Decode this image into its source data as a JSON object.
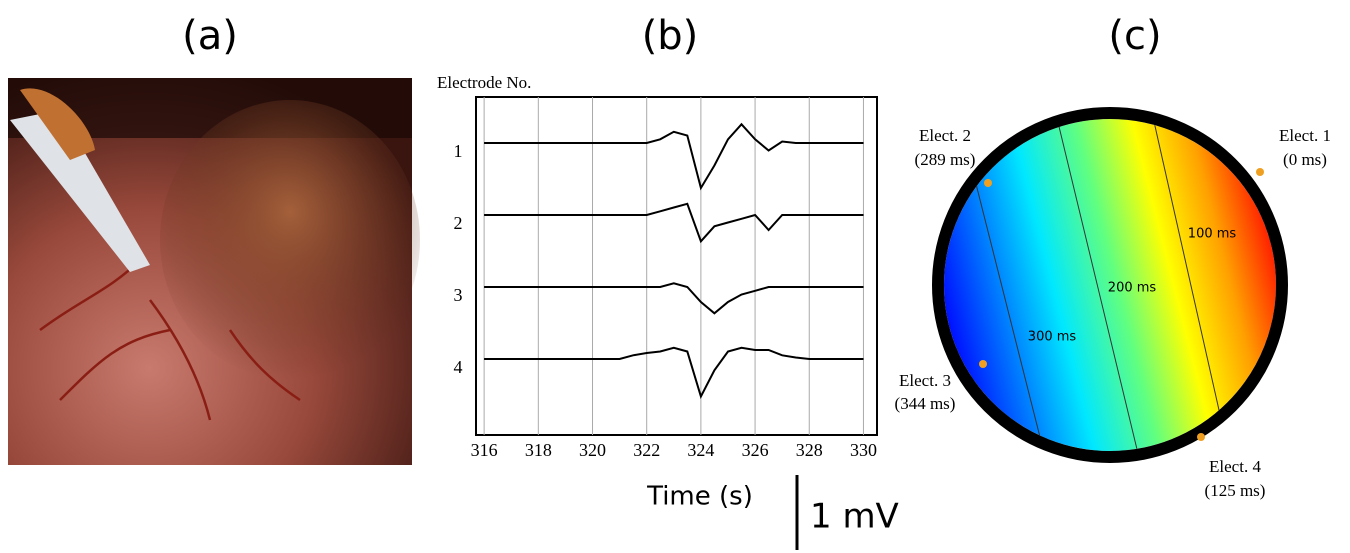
{
  "panel_labels": [
    "(a)",
    "(b)",
    "(c)"
  ],
  "chart_data": {
    "type": "line",
    "y_title": "Electrode No.",
    "x_title": "Time (s)",
    "scale_bar": 1,
    "scale_bar_label": "1 mV",
    "color": "#000000",
    "grid": true,
    "xlim": [
      315.7,
      330.5
    ],
    "xticks": [
      316,
      318,
      320,
      322,
      324,
      326,
      328,
      330
    ],
    "x": [
      316,
      316.5,
      317,
      317.5,
      318,
      318.5,
      319,
      319.5,
      320,
      320.5,
      321,
      321.5,
      322,
      322.5,
      323,
      323.5,
      324,
      324.5,
      325,
      325.5,
      326,
      326.5,
      327,
      327.5,
      328,
      328.5,
      329,
      329.5,
      330
    ],
    "series": [
      {
        "name": "1",
        "values": [
          0,
          0,
          0,
          0,
          0,
          0,
          0,
          0,
          0,
          0,
          0,
          0,
          0,
          0.05,
          0.15,
          0.1,
          -0.6,
          -0.3,
          0.05,
          0.25,
          0.05,
          -0.1,
          0.02,
          0,
          0,
          0,
          0,
          0,
          0
        ]
      },
      {
        "name": "2",
        "values": [
          0,
          0,
          0,
          0,
          0,
          0,
          0,
          0,
          0,
          0,
          0,
          0,
          0,
          0.05,
          0.1,
          0.15,
          -0.35,
          -0.15,
          -0.1,
          -0.05,
          0,
          -0.2,
          0,
          0,
          0,
          0,
          0,
          0,
          0
        ]
      },
      {
        "name": "3",
        "values": [
          0,
          0,
          0,
          0,
          0,
          0,
          0,
          0,
          0,
          0,
          0,
          0,
          0,
          0,
          0.05,
          0,
          -0.2,
          -0.35,
          -0.2,
          -0.1,
          -0.05,
          0,
          0,
          0,
          0,
          0,
          0,
          0,
          0
        ]
      },
      {
        "name": "4",
        "values": [
          0,
          0,
          0,
          0,
          0,
          0,
          0,
          0,
          0,
          0,
          0,
          0.05,
          0.08,
          0.1,
          0.15,
          0.1,
          -0.5,
          -0.15,
          0.1,
          0.15,
          0.12,
          0.12,
          0.05,
          0.02,
          0,
          0,
          0,
          0,
          0
        ]
      }
    ]
  },
  "map": {
    "electrodes": [
      {
        "label": "Elect. 1",
        "time": "(0 ms)"
      },
      {
        "label": "Elect. 2",
        "time": "(289 ms)"
      },
      {
        "label": "Elect. 3",
        "time": "(344 ms)"
      },
      {
        "label": "Elect. 4",
        "time": "(125 ms)"
      }
    ],
    "isochrones": [
      "100 ms",
      "200 ms",
      "300 ms"
    ]
  }
}
